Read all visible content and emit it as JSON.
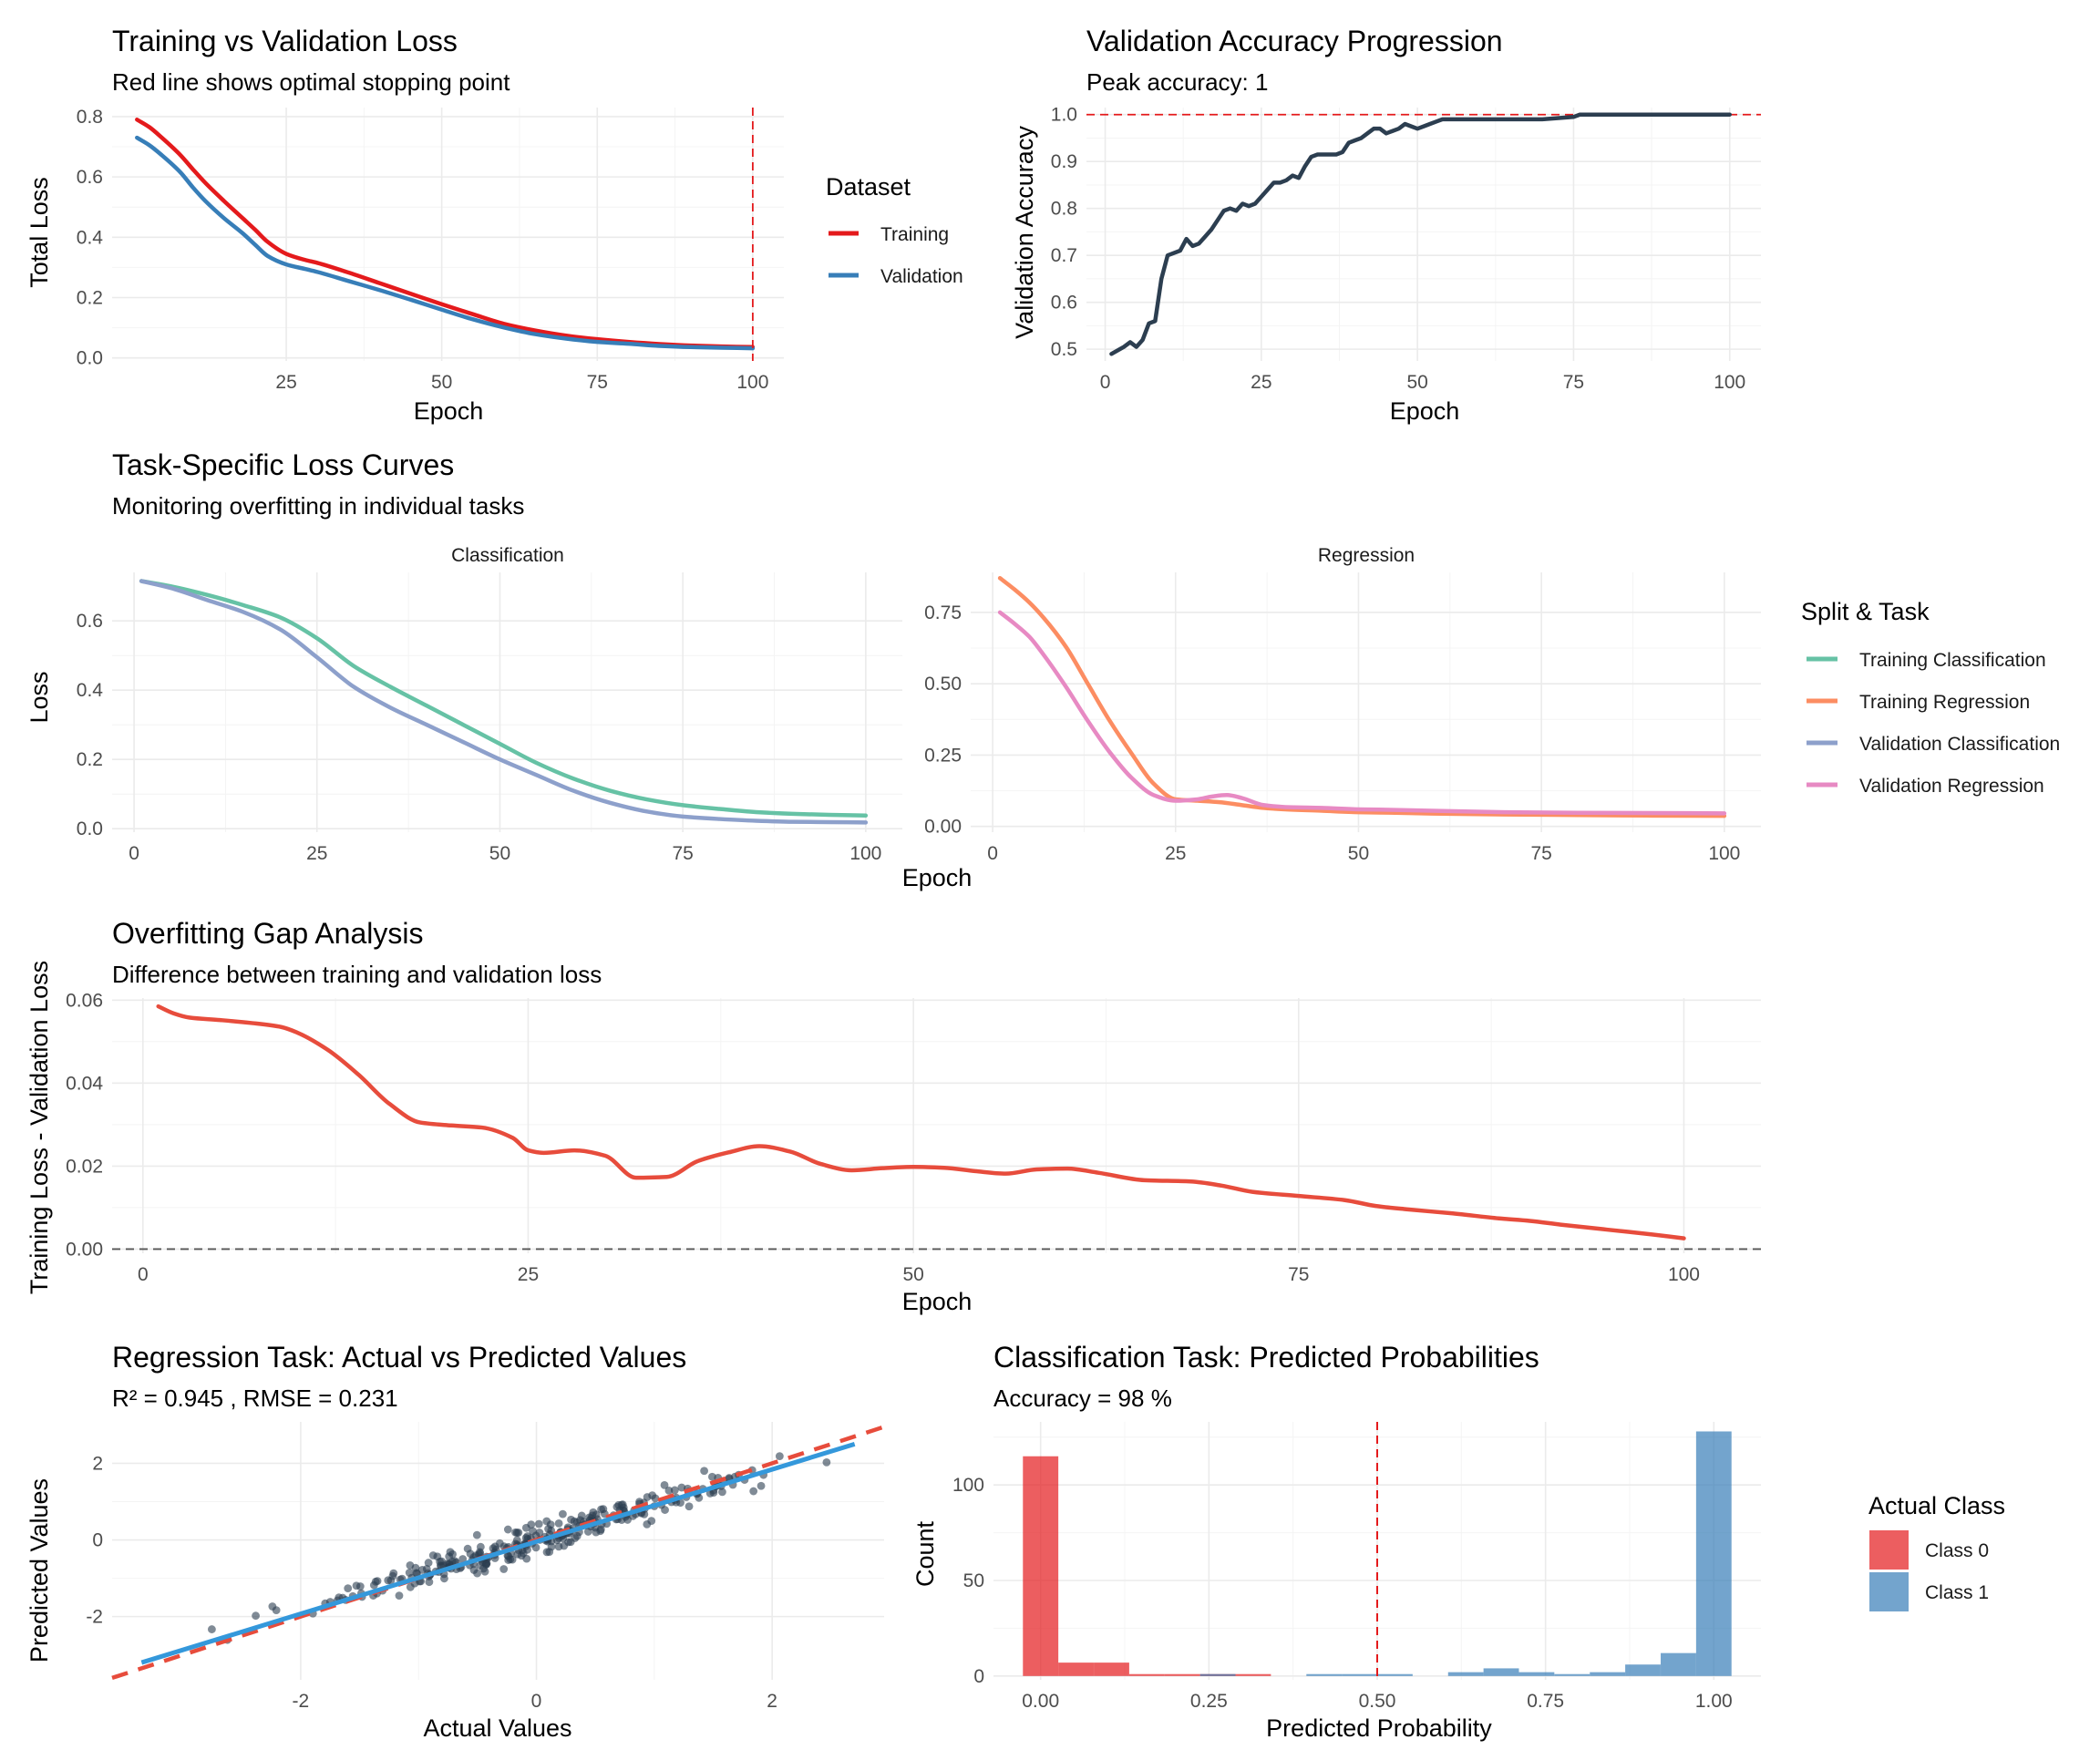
{
  "chart_data": [
    {
      "id": "loss",
      "type": "line",
      "title": "Training vs Validation Loss",
      "subtitle": "Red line shows optimal stopping point",
      "xlabel": "Epoch",
      "ylabel": "Total Loss",
      "xlim": [
        -3,
        105
      ],
      "ylim": [
        -0.01,
        0.83
      ],
      "xticks": [
        25,
        50,
        75,
        100
      ],
      "yticks": [
        0.0,
        0.2,
        0.4,
        0.6,
        0.8
      ],
      "ytick_labels": [
        "0.0",
        "0.2",
        "0.4",
        "0.6",
        "0.8"
      ],
      "vline": 100,
      "legend_title": "Dataset",
      "series": [
        {
          "name": "Training",
          "color": "#e41a1c",
          "x": [
            1,
            3,
            5,
            8,
            10,
            12,
            15,
            18,
            20,
            22,
            25,
            28,
            30,
            35,
            40,
            45,
            50,
            55,
            60,
            65,
            70,
            75,
            80,
            85,
            90,
            95,
            100
          ],
          "y": [
            0.79,
            0.765,
            0.73,
            0.672,
            0.625,
            0.58,
            0.52,
            0.463,
            0.425,
            0.385,
            0.345,
            0.325,
            0.315,
            0.283,
            0.248,
            0.213,
            0.178,
            0.145,
            0.113,
            0.091,
            0.074,
            0.062,
            0.053,
            0.046,
            0.041,
            0.038,
            0.036
          ]
        },
        {
          "name": "Validation",
          "color": "#377eb8",
          "x": [
            1,
            3,
            5,
            8,
            10,
            12,
            15,
            18,
            20,
            22,
            25,
            28,
            30,
            35,
            40,
            45,
            50,
            55,
            60,
            65,
            70,
            75,
            80,
            85,
            90,
            95,
            100
          ],
          "y": [
            0.73,
            0.705,
            0.672,
            0.615,
            0.565,
            0.52,
            0.463,
            0.413,
            0.375,
            0.338,
            0.31,
            0.295,
            0.285,
            0.255,
            0.225,
            0.193,
            0.16,
            0.128,
            0.101,
            0.079,
            0.064,
            0.053,
            0.047,
            0.04,
            0.036,
            0.034,
            0.032
          ]
        }
      ]
    },
    {
      "id": "acc",
      "type": "line",
      "title": "Validation Accuracy Progression",
      "subtitle": "Peak accuracy: 1",
      "xlabel": "Epoch",
      "ylabel": "Validation Accuracy",
      "xlim": [
        -3,
        105
      ],
      "ylim": [
        0.475,
        1.015
      ],
      "xticks": [
        0,
        25,
        50,
        75,
        100
      ],
      "yticks": [
        0.5,
        0.6,
        0.7,
        0.8,
        0.9,
        1.0
      ],
      "ytick_labels": [
        "0.5",
        "0.6",
        "0.7",
        "0.8",
        "0.9",
        "1.0"
      ],
      "hline": 1.0,
      "series": [
        {
          "name": "",
          "color": "#2c3e50",
          "x": [
            1,
            3,
            4,
            5,
            6,
            7,
            8,
            9,
            10,
            12,
            13,
            14,
            15,
            16,
            17,
            18,
            19,
            20,
            21,
            22,
            23,
            24,
            25,
            26,
            27,
            28,
            29,
            30,
            31,
            32,
            33,
            34,
            35,
            36,
            37,
            38,
            39,
            40,
            41,
            42,
            43,
            44,
            45,
            46,
            47,
            48,
            49,
            50,
            51,
            52,
            53,
            54,
            55,
            56,
            60,
            65,
            70,
            75,
            76,
            80,
            85,
            90,
            95,
            100
          ],
          "y": [
            0.49,
            0.505,
            0.515,
            0.505,
            0.52,
            0.555,
            0.56,
            0.65,
            0.7,
            0.71,
            0.735,
            0.72,
            0.725,
            0.74,
            0.755,
            0.775,
            0.795,
            0.8,
            0.795,
            0.81,
            0.805,
            0.81,
            0.825,
            0.84,
            0.855,
            0.855,
            0.86,
            0.87,
            0.865,
            0.89,
            0.91,
            0.915,
            0.915,
            0.915,
            0.915,
            0.92,
            0.94,
            0.945,
            0.95,
            0.96,
            0.97,
            0.97,
            0.96,
            0.965,
            0.97,
            0.98,
            0.975,
            0.97,
            0.975,
            0.98,
            0.985,
            0.99,
            0.99,
            0.99,
            0.99,
            0.99,
            0.99,
            0.995,
            1.0,
            1.0,
            1.0,
            1.0,
            1.0,
            1.0
          ]
        }
      ]
    },
    {
      "id": "task",
      "type": "line",
      "title": "Task-Specific Loss Curves",
      "subtitle": "Monitoring overfitting in individual tasks",
      "xlabel": "Epoch",
      "ylabel": "Loss",
      "legend_title": "Split & Task",
      "legend": [
        {
          "name": "Training Classification",
          "color": "#66c2a5"
        },
        {
          "name": "Training Regression",
          "color": "#fc8d62"
        },
        {
          "name": "Validation Classification",
          "color": "#8da0cb"
        },
        {
          "name": "Validation Regression",
          "color": "#e78ac3"
        }
      ],
      "facets": [
        {
          "label": "Classification",
          "xlim": [
            -3,
            105
          ],
          "ylim": [
            -0.01,
            0.74
          ],
          "xticks": [
            0,
            25,
            50,
            75,
            100
          ],
          "yticks": [
            0.0,
            0.2,
            0.4,
            0.6
          ],
          "ytick_labels": [
            "0.0",
            "0.2",
            "0.4",
            "0.6"
          ],
          "series": [
            {
              "name": "Training Classification",
              "color": "#66c2a5",
              "x": [
                1,
                5,
                10,
                15,
                20,
                25,
                30,
                35,
                40,
                45,
                50,
                55,
                60,
                65,
                70,
                75,
                80,
                85,
                90,
                95,
                100
              ],
              "y": [
                0.715,
                0.7,
                0.675,
                0.645,
                0.61,
                0.55,
                0.47,
                0.41,
                0.355,
                0.3,
                0.245,
                0.19,
                0.145,
                0.11,
                0.085,
                0.068,
                0.057,
                0.048,
                0.043,
                0.04,
                0.038
              ]
            },
            {
              "name": "Validation Classification",
              "color": "#8da0cb",
              "x": [
                1,
                5,
                10,
                15,
                20,
                25,
                30,
                35,
                40,
                45,
                50,
                55,
                60,
                65,
                70,
                75,
                80,
                85,
                90,
                95,
                100
              ],
              "y": [
                0.715,
                0.695,
                0.66,
                0.625,
                0.575,
                0.495,
                0.41,
                0.35,
                0.3,
                0.25,
                0.2,
                0.155,
                0.11,
                0.075,
                0.05,
                0.035,
                0.028,
                0.023,
                0.02,
                0.019,
                0.018
              ]
            }
          ]
        },
        {
          "label": "Regression",
          "xlim": [
            -3,
            105
          ],
          "ylim": [
            -0.02,
            0.89
          ],
          "xticks": [
            0,
            25,
            50,
            75,
            100
          ],
          "yticks": [
            0.0,
            0.25,
            0.5,
            0.75
          ],
          "ytick_labels": [
            "0.00",
            "0.25",
            "0.50",
            "0.75"
          ],
          "series": [
            {
              "name": "Training Regression",
              "color": "#fc8d62",
              "x": [
                1,
                3,
                5,
                7,
                10,
                13,
                16,
                19,
                22,
                25,
                28,
                31,
                34,
                37,
                40,
                45,
                50,
                55,
                60,
                70,
                80,
                90,
                100
              ],
              "y": [
                0.87,
                0.83,
                0.785,
                0.73,
                0.63,
                0.5,
                0.37,
                0.255,
                0.15,
                0.095,
                0.09,
                0.085,
                0.075,
                0.065,
                0.06,
                0.055,
                0.05,
                0.048,
                0.045,
                0.042,
                0.04,
                0.038,
                0.037
              ]
            },
            {
              "name": "Validation Regression",
              "color": "#e78ac3",
              "x": [
                1,
                3,
                5,
                7,
                10,
                13,
                16,
                19,
                22,
                25,
                28,
                30,
                32,
                34,
                37,
                40,
                45,
                50,
                55,
                60,
                70,
                80,
                90,
                100
              ],
              "y": [
                0.75,
                0.71,
                0.665,
                0.6,
                0.49,
                0.37,
                0.26,
                0.17,
                0.11,
                0.09,
                0.095,
                0.105,
                0.11,
                0.1,
                0.075,
                0.068,
                0.065,
                0.06,
                0.058,
                0.055,
                0.05,
                0.048,
                0.047,
                0.046
              ]
            }
          ]
        }
      ]
    },
    {
      "id": "gap",
      "type": "line",
      "title": "Overfitting Gap Analysis",
      "subtitle": "Difference between training and validation loss",
      "xlabel": "Epoch",
      "ylabel": "Training Loss - Validation Loss",
      "xlim": [
        -2,
        105
      ],
      "ylim": [
        -0.001,
        0.0605
      ],
      "xticks": [
        0,
        25,
        50,
        75,
        100
      ],
      "yticks": [
        0.0,
        0.02,
        0.04,
        0.06
      ],
      "ytick_labels": [
        "0.00",
        "0.02",
        "0.04",
        "0.06"
      ],
      "hline": 0,
      "series": [
        {
          "name": "",
          "color": "#e74c3c",
          "x": [
            1,
            2,
            3,
            5,
            7,
            9,
            10,
            12,
            14,
            16,
            18,
            20,
            22,
            24,
            25,
            26,
            28,
            30,
            32,
            34,
            36,
            38,
            40,
            42,
            44,
            46,
            48,
            50,
            52,
            54,
            56,
            58,
            60,
            62,
            65,
            68,
            70,
            72,
            75,
            78,
            80,
            82,
            85,
            88,
            90,
            92,
            95,
            98,
            100
          ],
          "y": [
            0.0585,
            0.0568,
            0.0558,
            0.0552,
            0.0545,
            0.0535,
            0.0522,
            0.048,
            0.042,
            0.035,
            0.0305,
            0.0298,
            0.0293,
            0.0268,
            0.0238,
            0.0232,
            0.0238,
            0.0225,
            0.0172,
            0.0174,
            0.0212,
            0.0233,
            0.0248,
            0.0235,
            0.0205,
            0.019,
            0.0195,
            0.0198,
            0.0196,
            0.0188,
            0.0182,
            0.0192,
            0.0194,
            0.0184,
            0.0166,
            0.0163,
            0.0153,
            0.0138,
            0.0128,
            0.0118,
            0.0104,
            0.0096,
            0.0086,
            0.0074,
            0.0068,
            0.0059,
            0.0047,
            0.0035,
            0.0026
          ]
        }
      ]
    },
    {
      "id": "reg",
      "type": "scatter",
      "title": "Regression Task: Actual vs Predicted Values",
      "subtitle": "R² = 0.945 , RMSE = 0.231",
      "xlabel": "Actual Values",
      "ylabel": "Predicted Values",
      "xlim": [
        -3.6,
        2.95
      ],
      "ylim": [
        -3.65,
        3.08
      ],
      "xticks": [
        -2,
        0,
        2
      ],
      "yticks": [
        -2,
        0,
        2
      ],
      "xtick_labels": [
        "-2",
        "0",
        "2"
      ],
      "ytick_labels": [
        "-2",
        "0",
        "2"
      ],
      "ref_line": {
        "slope": 1,
        "intercept": 0,
        "color": "#e74c3c"
      },
      "fit_line": {
        "x": [
          -3.35,
          2.7
        ],
        "y": [
          -3.2,
          2.5
        ],
        "color": "#3498db"
      },
      "point_color": "#2c3e50"
    },
    {
      "id": "cls",
      "type": "bar",
      "title": "Classification Task: Predicted Probabilities",
      "subtitle": "Accuracy = 98 %",
      "xlabel": "Predicted Probability",
      "ylabel": "Count",
      "xlim": [
        -0.07,
        1.07
      ],
      "ylim": [
        -2,
        133
      ],
      "xticks": [
        0,
        0.25,
        0.5,
        0.75,
        1.0
      ],
      "xtick_labels": [
        "0.00",
        "0.25",
        "0.50",
        "0.75",
        "1.00"
      ],
      "yticks": [
        0,
        50,
        100
      ],
      "ytick_labels": [
        "0",
        "50",
        "100"
      ],
      "vline": 0.5,
      "bin_width": 0.0526,
      "legend_title": "Actual Class",
      "series": [
        {
          "name": "Class 0",
          "color": "#e41a1c",
          "centers": [
            0.0,
            0.0526,
            0.1053,
            0.1579,
            0.2105,
            0.2632,
            0.3158
          ],
          "values": [
            115,
            7,
            7,
            1,
            1,
            1,
            1
          ]
        },
        {
          "name": "Class 1",
          "color": "#377eb8",
          "centers": [
            0.2632,
            0.4211,
            0.4737,
            0.5263,
            0.6316,
            0.6842,
            0.7368,
            0.7895,
            0.8421,
            0.8947,
            0.9474,
            1.0
          ],
          "values": [
            1,
            1,
            1,
            1,
            2,
            4,
            2,
            1,
            2,
            6,
            12,
            128
          ]
        }
      ]
    }
  ]
}
